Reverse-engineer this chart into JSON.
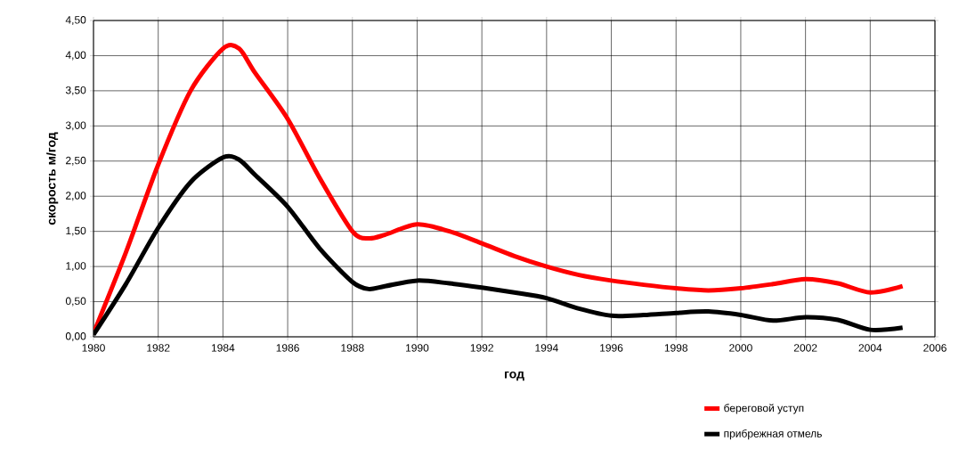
{
  "chart_data": {
    "type": "line",
    "xlabel": "год",
    "ylabel": "скорость м/год",
    "x": [
      1980,
      1981,
      1982,
      1983,
      1984,
      1984.5,
      1985,
      1986,
      1987,
      1988,
      1988.5,
      1989,
      1990,
      1991,
      1992,
      1993,
      1994,
      1995,
      1996,
      1997,
      1998,
      1999,
      2000,
      2001,
      2002,
      2003,
      2004,
      2005
    ],
    "series": [
      {
        "name": "береговой уступ",
        "color": "#ff0000",
        "values": [
          0.05,
          1.2,
          2.45,
          3.5,
          4.1,
          4.1,
          3.75,
          3.1,
          2.25,
          1.5,
          1.4,
          1.45,
          1.6,
          1.5,
          1.33,
          1.15,
          1.0,
          0.88,
          0.8,
          0.74,
          0.69,
          0.66,
          0.69,
          0.75,
          0.82,
          0.76,
          0.63,
          0.72
        ]
      },
      {
        "name": "прибрежная отмель",
        "color": "#000000",
        "values": [
          0.03,
          0.75,
          1.55,
          2.2,
          2.55,
          2.52,
          2.3,
          1.85,
          1.25,
          0.78,
          0.68,
          0.72,
          0.8,
          0.76,
          0.7,
          0.63,
          0.55,
          0.4,
          0.3,
          0.31,
          0.34,
          0.36,
          0.31,
          0.23,
          0.28,
          0.24,
          0.1,
          0.13
        ]
      }
    ],
    "xlim": [
      1980,
      2006
    ],
    "xticks": [
      1980,
      1982,
      1984,
      1986,
      1988,
      1990,
      1992,
      1994,
      1996,
      1998,
      2000,
      2002,
      2004,
      2006
    ],
    "ylim": [
      0,
      4.5
    ],
    "yticks": [
      {
        "value": 0,
        "label": "0,00"
      },
      {
        "value": 0.5,
        "label": "0,50"
      },
      {
        "value": 1,
        "label": "1,00"
      },
      {
        "value": 1.5,
        "label": "1,50"
      },
      {
        "value": 2,
        "label": "2,00"
      },
      {
        "value": 2.5,
        "label": "2,50"
      },
      {
        "value": 3,
        "label": "3,00"
      },
      {
        "value": 3.5,
        "label": "3,50"
      },
      {
        "value": 4,
        "label": "4,00"
      },
      {
        "value": 4.5,
        "label": "4,50"
      }
    ],
    "grid": true,
    "legend": "bottom right",
    "marker": "none",
    "line_style": "solid"
  }
}
